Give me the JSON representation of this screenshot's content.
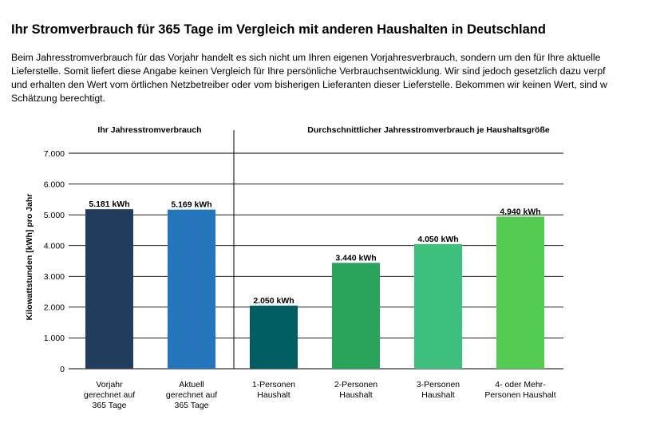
{
  "page": {
    "title": "Ihr Stromverbrauch für 365 Tage im Vergleich mit anderen Haushalten in Deutschland",
    "intro_lines": [
      "Beim Jahresstromverbrauch für das Vorjahr handelt es sich nicht um Ihren eigenen Vorjahresverbrauch, sondern um den für Ihre aktuelle",
      "Lieferstelle. Somit liefert diese Angabe keinen Vergleich für Ihre persönliche Verbrauchsentwicklung. Wir sind jedoch gesetzlich dazu verpf",
      "und erhalten den Wert vom örtlichen Netzbetreiber oder vom bisherigen Lieferanten dieser Lieferstelle. Bekommen wir keinen Wert, sind w",
      "Schätzung berechtigt."
    ]
  },
  "chart_data": {
    "type": "bar",
    "ylabel": "Kilowattstunden [kWh] pro Jahr",
    "ylim": [
      0,
      7000
    ],
    "yticks": [
      0,
      1000,
      2000,
      3000,
      4000,
      5000,
      6000,
      7000
    ],
    "ytick_labels": [
      "0",
      "1.000",
      "2.000",
      "3.000",
      "4.000",
      "5.000",
      "6.000",
      "7.000"
    ],
    "grid": true,
    "sections": [
      {
        "label": "Ihr Jahresstromverbrauch",
        "bars": [
          0,
          1
        ]
      },
      {
        "label": "Durchschnittlicher Jahresstromverbrauch je Haushaltsgröße",
        "bars": [
          2,
          3,
          4,
          5
        ]
      }
    ],
    "categories": [
      [
        "Vorjahr",
        "gerechnet auf",
        "365 Tage"
      ],
      [
        "Aktuell",
        "gerechnet auf",
        "365 Tage"
      ],
      [
        "1-Personen",
        "Haushalt"
      ],
      [
        "2-Personen",
        "Haushalt"
      ],
      [
        "3-Personen",
        "Haushalt"
      ],
      [
        "4- oder Mehr-",
        "Personen Haushalt"
      ]
    ],
    "values": [
      5181,
      5169,
      2050,
      3440,
      4050,
      4940
    ],
    "data_labels": [
      "5.181 kWh",
      "5.169 kWh",
      "2.050 kWh",
      "3.440 kWh",
      "4.050 kWh",
      "4.940 kWh"
    ],
    "colors": [
      "#213d5e",
      "#2575bd",
      "#005e63",
      "#28a55a",
      "#3dc07c",
      "#52cd52"
    ]
  }
}
